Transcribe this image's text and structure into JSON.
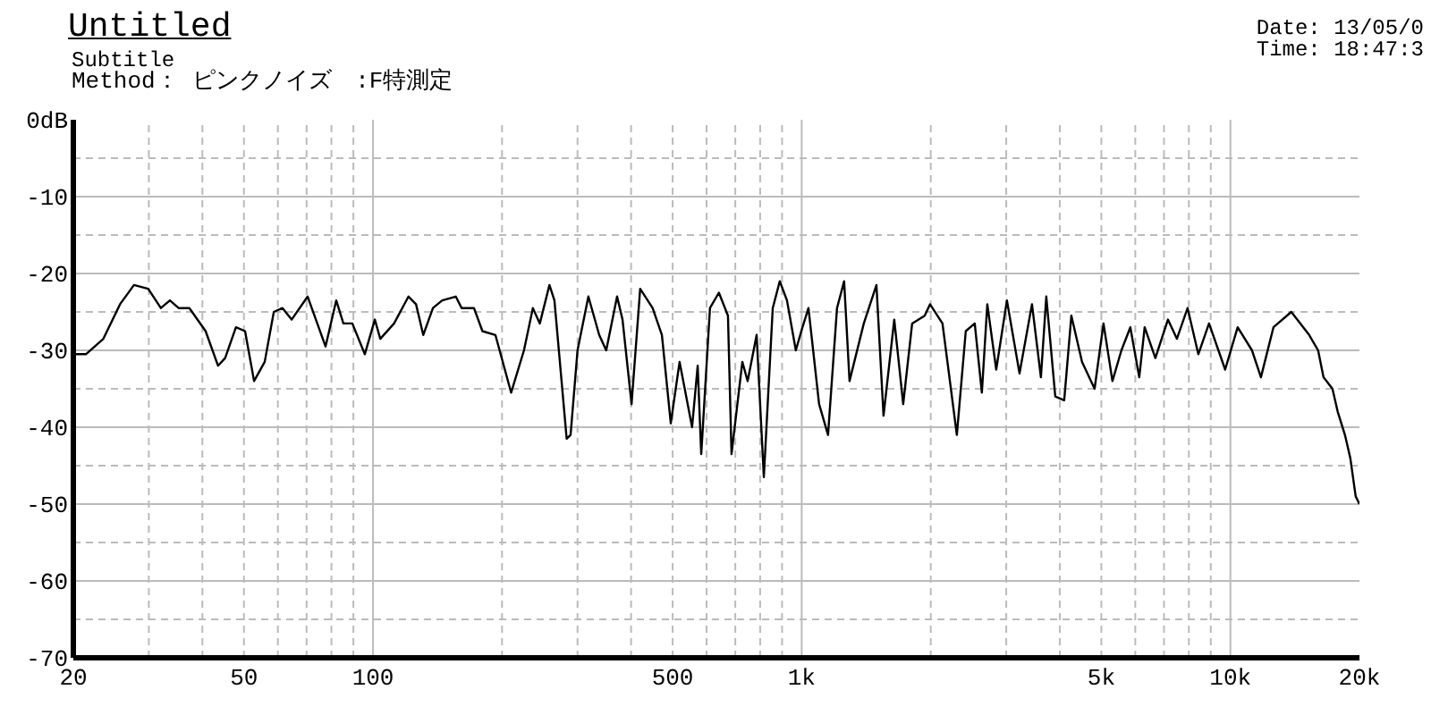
{
  "chart_data": {
    "type": "line",
    "title": "Untitled",
    "subtitle": "Subtitle",
    "annotations": [
      "Method： ピンクノイズ　:F特測定",
      "Date: 13/05/0",
      "Time: 18:47:3"
    ],
    "log": "x",
    "grid": true,
    "line_style": "solid",
    "xlim": [
      20,
      20000
    ],
    "xticks": [
      20,
      {
        "value": 30,
        "label": null
      },
      {
        "value": 40,
        "label": null
      },
      50,
      {
        "value": 60,
        "label": null
      },
      {
        "value": 70,
        "label": null
      },
      {
        "value": 80,
        "label": null
      },
      {
        "value": 90,
        "label": null
      },
      100,
      {
        "value": 200,
        "label": null
      },
      {
        "value": 300,
        "label": null
      },
      {
        "value": 400,
        "label": null
      },
      500,
      {
        "value": 600,
        "label": null
      },
      {
        "value": 700,
        "label": null
      },
      {
        "value": 800,
        "label": null
      },
      {
        "value": 900,
        "label": null
      },
      {
        "value": 1000,
        "label": "1k"
      },
      {
        "value": 2000,
        "label": null
      },
      {
        "value": 3000,
        "label": null
      },
      {
        "value": 4000,
        "label": null
      },
      {
        "value": 5000,
        "label": "5k"
      },
      {
        "value": 6000,
        "label": null
      },
      {
        "value": 7000,
        "label": null
      },
      {
        "value": 8000,
        "label": null
      },
      {
        "value": 9000,
        "label": null
      },
      {
        "value": 10000,
        "label": "10k"
      },
      {
        "value": 20000,
        "label": "20k"
      }
    ],
    "ylim": [
      -70,
      0
    ],
    "yticks": [
      {
        "value": 0,
        "label": "0dB"
      },
      {
        "value": -5,
        "label": null
      },
      -10,
      {
        "value": -15,
        "label": null
      },
      -20,
      {
        "value": -25,
        "label": null
      },
      -30,
      {
        "value": -35,
        "label": null
      },
      -40,
      {
        "value": -45,
        "label": null
      },
      -50,
      {
        "value": -55,
        "label": null
      },
      -60,
      {
        "value": -65,
        "label": null
      },
      -70
    ],
    "x": [
      20,
      21.4,
      23.5,
      25.7,
      27.7,
      29.9,
      32,
      33.6,
      35.2,
      37.3,
      40.7,
      43.5,
      45.2,
      47.9,
      50.3,
      52.8,
      55.9,
      58.7,
      61.5,
      64.6,
      70.4,
      77.5,
      82.1,
      85.3,
      89.5,
      95.7,
      101,
      104,
      112,
      121,
      126,
      131,
      138,
      145,
      156,
      161,
      172,
      180,
      193,
      210,
      225,
      236,
      245,
      258,
      265,
      283,
      289,
      300,
      318,
      337,
      350,
      371,
      382,
      401,
      420,
      449,
      472,
      495,
      519,
      555,
      572,
      583,
      611,
      641,
      673,
      686,
      727,
      748,
      785,
      816,
      856,
      889,
      924,
      969,
      998,
      1037,
      1098,
      1152,
      1209,
      1256,
      1293,
      1396,
      1494,
      1552,
      1644,
      1725,
      1810,
      1936,
      1992,
      2130,
      2301,
      2414,
      2533,
      2632,
      2710,
      2843,
      3011,
      3222,
      3445,
      3614,
      3720,
      3904,
      4096,
      4256,
      4508,
      4822,
      5058,
      5307,
      5569,
      5842,
      6129,
      6310,
      6683,
      7150,
      7502,
      7946,
      8418,
      8916,
      9722,
      10398,
      11230,
      11782,
      12602,
      13870,
      15268,
      16018,
      16488,
      17300,
      17800,
      18500,
      19040,
      19600,
      20000
    ],
    "series": [
      {
        "color": "#000000",
        "values": [
          -30.5,
          -30.5,
          -28.5,
          -24,
          -21.5,
          -22,
          -24.5,
          -23.5,
          -24.5,
          -24.5,
          -27.5,
          -32,
          -31,
          -27,
          -27.5,
          -34,
          -31.5,
          -25,
          -24.5,
          -26,
          -23,
          -29.5,
          -23.5,
          -26.5,
          -26.5,
          -30.5,
          -26,
          -28.5,
          -26.5,
          -23,
          -24,
          -28,
          -24.5,
          -23.5,
          -23,
          -24.5,
          -24.5,
          -27.5,
          -28,
          -35.5,
          -30,
          -24.5,
          -26.5,
          -21.5,
          -23.5,
          -41.5,
          -41,
          -30,
          -23,
          -28,
          -30,
          -23,
          -26,
          -37,
          -22,
          -24.5,
          -28,
          -39.5,
          -31.5,
          -40,
          -32,
          -43.5,
          -24.5,
          -22.5,
          -25.5,
          -43.5,
          -31.5,
          -34,
          -28,
          -46.5,
          -24.5,
          -21,
          -23.5,
          -30,
          -27.5,
          -24.5,
          -37,
          -41,
          -24.5,
          -21,
          -34,
          -26.5,
          -21.5,
          -38.5,
          -26,
          -37,
          -26.5,
          -25.5,
          -24,
          -26.5,
          -41,
          -27.5,
          -26.5,
          -35.5,
          -24,
          -32.5,
          -23.5,
          -33,
          -24,
          -33.5,
          -23,
          -36,
          -36.5,
          -25.5,
          -31.5,
          -35,
          -26.5,
          -34,
          -30,
          -27,
          -33.5,
          -27,
          -31,
          -26,
          -28.5,
          -24.5,
          -30.5,
          -26.5,
          -32.5,
          -27,
          -30,
          -33.5,
          -27,
          -25,
          -28,
          -30,
          -33.5,
          -35,
          -38,
          -41,
          -44,
          -49,
          -50
        ]
      }
    ]
  }
}
